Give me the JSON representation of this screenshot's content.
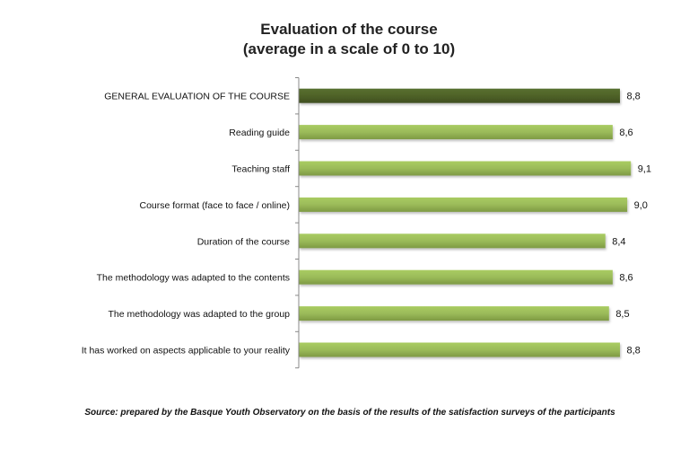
{
  "chart_data": {
    "type": "bar",
    "orientation": "horizontal",
    "title": "Evaluation of the course",
    "subtitle": "(average in a scale of 0 to 10)",
    "categories": [
      "GENERAL EVALUATION OF THE COURSE",
      "Reading guide",
      "Teaching staff",
      "Course format (face to face / online)",
      "Duration of the course",
      "The methodology was adapted to the contents",
      "The methodology was adapted to the group",
      "It has worked on aspects applicable to your reality"
    ],
    "values": [
      8.8,
      8.6,
      9.1,
      9.0,
      8.4,
      8.6,
      8.5,
      8.8
    ],
    "data_labels": [
      "8,8",
      "8,6",
      "9,1",
      "9,0",
      "8,4",
      "8,6",
      "8,5",
      "8,8"
    ],
    "xlim": [
      0,
      10
    ],
    "grid": false,
    "legend": "none",
    "colors": {
      "highlight": "#4f6228",
      "bar": "#9bbb59"
    }
  },
  "source": "Source: prepared by the Basque Youth Observatory on the basis of the results of the satisfaction surveys of the participants"
}
